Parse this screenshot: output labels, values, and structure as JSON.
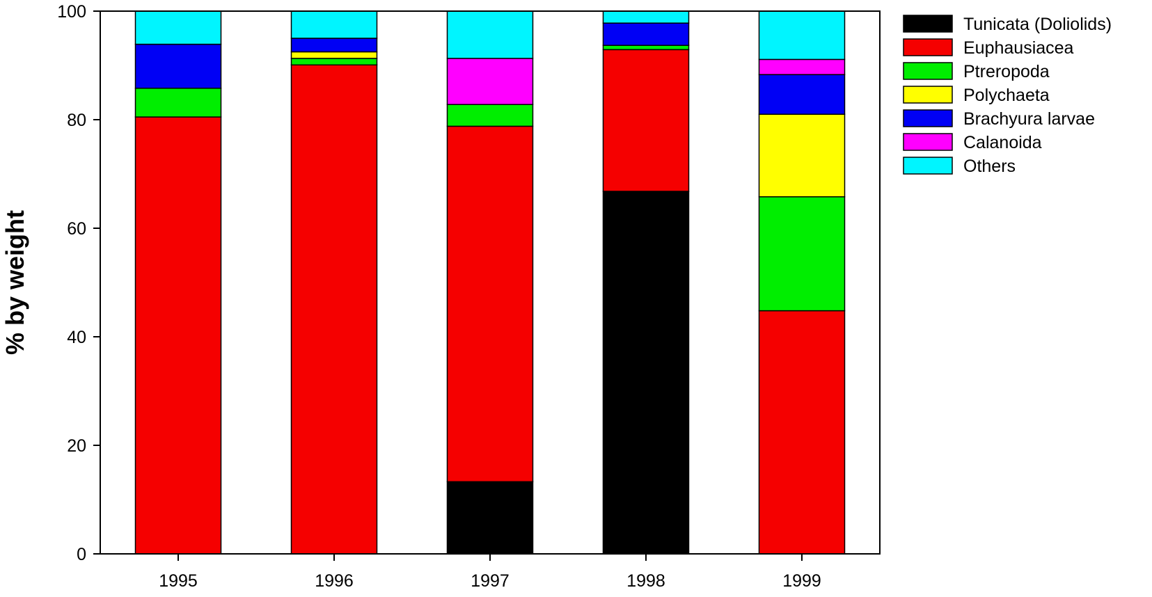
{
  "chart_data": {
    "type": "bar",
    "stacked": true,
    "title": "",
    "xlabel": "",
    "ylabel": "% by weight",
    "ylim": [
      0,
      100
    ],
    "yticks": [
      0,
      20,
      40,
      60,
      80,
      100
    ],
    "grid": false,
    "legend_position": "top-right",
    "categories": [
      "1995",
      "1996",
      "1997",
      "1998",
      "1999"
    ],
    "series": [
      {
        "name": "Tunicata (Doliolids)",
        "color": "#000000",
        "values": [
          0,
          0,
          13.3,
          66.8,
          0
        ]
      },
      {
        "name": "Euphausiacea",
        "color": "#f50000",
        "values": [
          80.5,
          90.1,
          65.5,
          26.1,
          44.8
        ]
      },
      {
        "name": "Ptreropoda",
        "color": "#00ee00",
        "values": [
          5.3,
          1.2,
          4.0,
          0.8,
          21.0
        ]
      },
      {
        "name": "Polychaeta",
        "color": "#ffff00",
        "values": [
          0,
          1.2,
          0,
          0,
          15.2
        ]
      },
      {
        "name": "Brachyura larvae",
        "color": "#0000f5",
        "values": [
          8.1,
          2.5,
          0,
          4.1,
          7.3
        ]
      },
      {
        "name": "Calanoida",
        "color": "#ff00ff",
        "values": [
          0,
          0,
          8.5,
          0,
          2.8
        ]
      },
      {
        "name": "Others",
        "color": "#00f5ff",
        "values": [
          6.1,
          5.0,
          8.7,
          2.2,
          8.9
        ]
      }
    ]
  }
}
